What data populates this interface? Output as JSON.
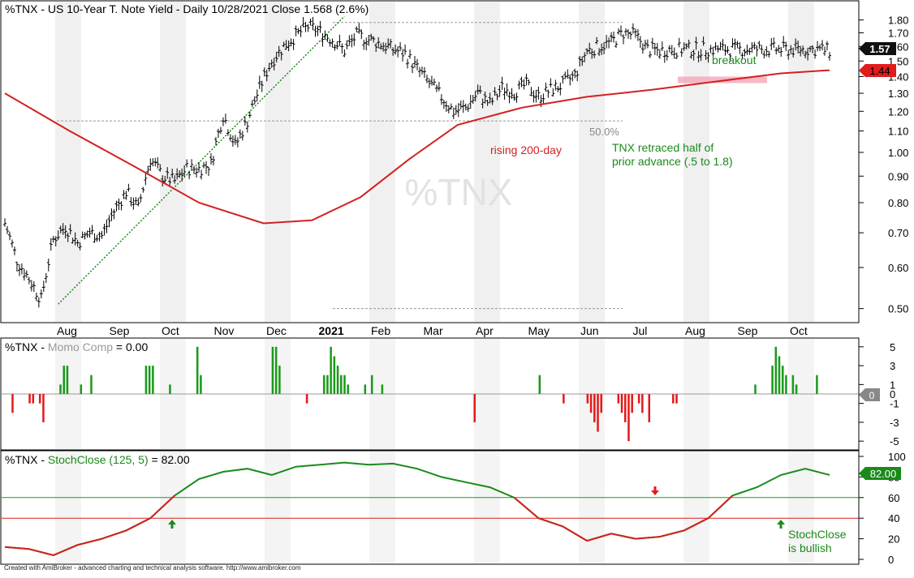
{
  "chart_data": [
    {
      "type": "candlestick",
      "title": "%TNX - US 10-Year T. Note Yield - Daily 10/28/2021 Close 1.568 (2.6%)",
      "watermark": "%TNX",
      "y_scale": "log",
      "ylim": [
        0.48,
        1.83
      ],
      "yticks": [
        "1.80",
        "1.70",
        "1.60",
        "1.50",
        "1.40",
        "1.30",
        "1.20",
        "1.10",
        "1.00",
        "0.90",
        "0.80",
        "0.70",
        "0.60",
        "0.50"
      ],
      "x_tick_labels": [
        "Aug",
        "Sep",
        "Oct",
        "Nov",
        "Dec",
        "2021",
        "Feb",
        "Mar",
        "Apr",
        "May",
        "Jun",
        "Jul",
        "Aug",
        "Sep",
        "Oct"
      ],
      "price_series": {
        "x": [
          0,
          5,
          10,
          15,
          20,
          25,
          30,
          35,
          40,
          45,
          50,
          55,
          60,
          65,
          70,
          75,
          80,
          85,
          90,
          95,
          100,
          105,
          110,
          115,
          120,
          125,
          130,
          135,
          140,
          145,
          150,
          155,
          160,
          165,
          170,
          175,
          180,
          185,
          190,
          195,
          200,
          205,
          210,
          215,
          220,
          225,
          230,
          235,
          240,
          245,
          250,
          255,
          260,
          265,
          270,
          275,
          280,
          285,
          290,
          295,
          300,
          305,
          310,
          315,
          320,
          325,
          330,
          335,
          340
        ],
        "close": [
          0.73,
          0.62,
          0.57,
          0.52,
          0.68,
          0.72,
          0.67,
          0.7,
          0.69,
          0.77,
          0.84,
          0.78,
          0.97,
          0.9,
          0.88,
          0.93,
          0.93,
          0.95,
          1.18,
          1.03,
          1.15,
          1.33,
          1.5,
          1.6,
          1.68,
          1.75,
          1.71,
          1.65,
          1.57,
          1.68,
          1.65,
          1.62,
          1.58,
          1.55,
          1.45,
          1.36,
          1.28,
          1.2,
          1.22,
          1.3,
          1.24,
          1.33,
          1.31,
          1.35,
          1.28,
          1.32,
          1.35,
          1.41,
          1.57,
          1.6,
          1.63,
          1.7,
          1.68,
          1.58,
          1.57,
          1.58,
          1.58,
          1.58,
          1.58,
          1.58,
          1.58,
          1.58,
          1.58,
          1.58,
          1.58,
          1.58,
          1.58,
          1.58,
          1.57
        ]
      },
      "sma200": {
        "label": "rising 200-day",
        "x": [
          0,
          20,
          40,
          60,
          80,
          95,
          110,
          125,
          140,
          160,
          180,
          200,
          220,
          240,
          255
        ],
        "y": [
          1.3,
          1.1,
          0.94,
          0.8,
          0.73,
          0.74,
          0.82,
          0.97,
          1.13,
          1.22,
          1.28,
          1.32,
          1.37,
          1.42,
          1.44
        ]
      },
      "last_close_label": "1.57",
      "sma_value_label": "1.44",
      "annotations": {
        "breakout": "breakout",
        "retracement_pct": "50.0%",
        "retracement_note_1": "TNX retraced half of",
        "retracement_note_2": "prior advance (.5 to 1.8)",
        "retracement_level": 1.15,
        "advance_low": 0.5,
        "advance_high": 1.78,
        "breakout_zone": [
          1.36,
          1.4
        ]
      }
    },
    {
      "type": "bar",
      "title": "%TNX - Momo Comp = 0.00",
      "title_prefix": "%TNX - ",
      "title_name": "Momo Comp",
      "title_value": " = 0.00",
      "yticks": [
        "5",
        "3",
        "1",
        "0",
        "-1",
        "-3",
        "-5"
      ],
      "ylim": [
        -5.5,
        5.5
      ],
      "last_value_label": "0",
      "values": [
        0,
        -2,
        0,
        0,
        0,
        0,
        -1,
        -1,
        0,
        -1,
        -3,
        0,
        0,
        0,
        0,
        1,
        3,
        3,
        0,
        0,
        0,
        1,
        0,
        0,
        2,
        0,
        0,
        0,
        0,
        0,
        0,
        0,
        0,
        0,
        0,
        0,
        0,
        0,
        0,
        0,
        3,
        3,
        3,
        0,
        0,
        0,
        0,
        1,
        0,
        0,
        0,
        0,
        0,
        0,
        0,
        5,
        2,
        0,
        0,
        0,
        0,
        0,
        0,
        0,
        0,
        0,
        0,
        0,
        0,
        0,
        0,
        0,
        0,
        0,
        0,
        0,
        0,
        5,
        5,
        3,
        0,
        0,
        0,
        0,
        0,
        0,
        0,
        -1,
        0,
        0,
        0,
        0,
        2,
        2,
        5,
        4,
        3,
        2,
        2,
        1,
        0,
        0,
        0,
        0,
        1,
        0,
        2,
        0,
        0,
        1,
        0,
        0,
        0,
        0,
        0,
        0,
        0,
        0,
        0,
        0,
        0,
        0,
        0,
        0,
        0,
        0,
        0,
        0,
        0,
        0,
        0,
        0,
        0,
        0,
        0,
        0,
        -3,
        0,
        0,
        0,
        0,
        0,
        0,
        0,
        0,
        0,
        0,
        0,
        0,
        0,
        0,
        0,
        0,
        0,
        0,
        2,
        0,
        0,
        0,
        0,
        0,
        0,
        -1,
        0,
        0,
        0,
        0,
        0,
        0,
        -1,
        -2,
        -3,
        -4,
        -2,
        0,
        0,
        0,
        0,
        -1,
        -2,
        -3,
        -5,
        -2,
        0,
        -1,
        -2,
        0,
        -3,
        0,
        0,
        0,
        0,
        0,
        0,
        -1,
        -1,
        0,
        0,
        0,
        0,
        0,
        0,
        0,
        0,
        0,
        0,
        0,
        0,
        0,
        0,
        0,
        0,
        0,
        0,
        0,
        0,
        0,
        0,
        1,
        0,
        0,
        0,
        0,
        3,
        5,
        4,
        3,
        2,
        0,
        2,
        1,
        0,
        0,
        0,
        0,
        0,
        2,
        0,
        0,
        0
      ]
    },
    {
      "type": "line",
      "title": "%TNX - StochClose (125, 5) = 82.00",
      "title_prefix": "%TNX - ",
      "title_name": "StochClose (125, 5)",
      "title_value": " = 82.00",
      "yticks": [
        "100",
        "80",
        "60",
        "40",
        "20",
        "0"
      ],
      "ylim": [
        0,
        100
      ],
      "hlines": [
        60,
        40
      ],
      "last_value_label": "82.00",
      "annotation_1": "StochClose",
      "annotation_2": "is bullish",
      "x": [
        0,
        10,
        20,
        30,
        40,
        50,
        60,
        70,
        80,
        90,
        100,
        110,
        120,
        130,
        140,
        150,
        160,
        170,
        180,
        190,
        200,
        210,
        220,
        230,
        240,
        250,
        260,
        270,
        280,
        290,
        300,
        310,
        320,
        330,
        340
      ],
      "y": [
        12,
        10,
        4,
        14,
        20,
        28,
        40,
        62,
        78,
        85,
        88,
        82,
        90,
        92,
        94,
        92,
        93,
        88,
        80,
        75,
        70,
        60,
        40,
        32,
        18,
        25,
        20,
        22,
        28,
        40,
        62,
        70,
        82,
        88,
        82
      ]
    }
  ],
  "footer": "Created with AmiBroker - advanced charting and technical analysis software. http://www.amibroker.com"
}
